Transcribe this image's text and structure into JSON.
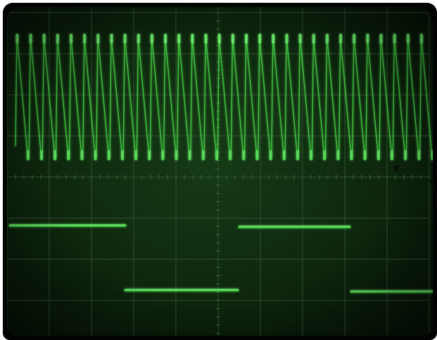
{
  "scope": {
    "trace_color": "#49d849",
    "glow_color": "#2fae2f",
    "graticule_color": "#2a4a2a",
    "phosphor_background": "#0f2b0f",
    "graticule_divisions": {
      "horizontal": 10,
      "vertical": 8
    },
    "ch1_sawtooth_cycles_shown": 31,
    "ch2_square_wave_segments": 4,
    "trigger_marker_icons": [
      "triangle-down-icon",
      "triangle-down-icon"
    ]
  }
}
